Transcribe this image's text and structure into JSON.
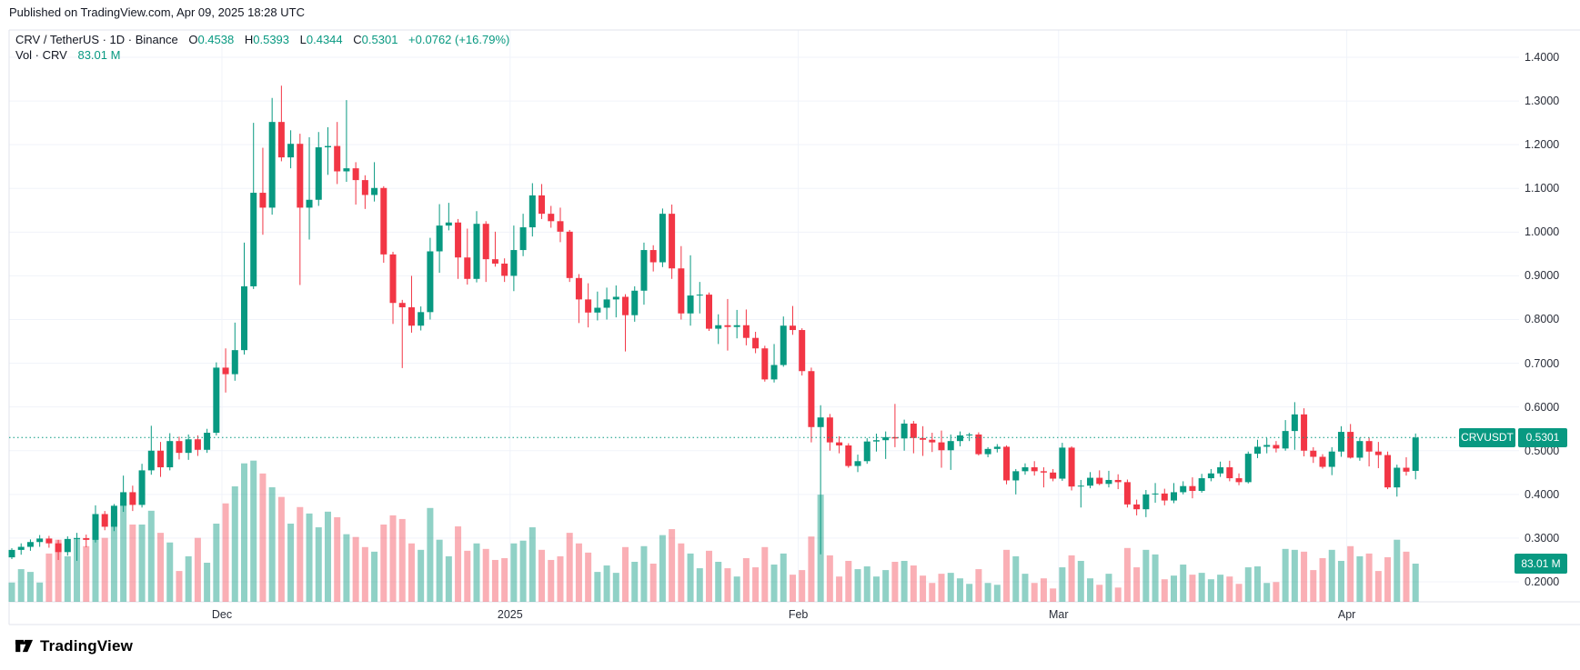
{
  "published_line": "Published on TradingView.com, Apr 09, 2025 18:28 UTC",
  "watermark": "TradingView",
  "legend": {
    "symbol": "CRV / TetherUS · 1D · Binance",
    "ohlc": [
      {
        "label": "O",
        "value": "0.4538"
      },
      {
        "label": "H",
        "value": "0.5393"
      },
      {
        "label": "L",
        "value": "0.4344"
      },
      {
        "label": "C",
        "value": "0.5301"
      }
    ],
    "change": "+0.0762 (+16.79%)",
    "volume_label": "Vol · CRV",
    "volume_value": "83.01 M"
  },
  "colors": {
    "up": "#089981",
    "down": "#F23645",
    "vol_up": "rgba(8,153,129,0.45)",
    "vol_down": "rgba(242,54,69,0.40)",
    "grid": "#f0f3fa",
    "frame": "#e0e3eb",
    "price_line": "#089981",
    "axis_text": "#2a2e39"
  },
  "chart_data": {
    "type": "candlestick_with_volume",
    "title": "CRV / TetherUS",
    "interval": "1D",
    "exchange": "Binance",
    "legend_position": "top-left",
    "grid": true,
    "y_axis": {
      "side": "right",
      "min": 0.2,
      "max": 1.4,
      "ticks": [
        {
          "v": 1.4,
          "t": "1.4000"
        },
        {
          "v": 1.3,
          "t": "1.3000"
        },
        {
          "v": 1.2,
          "t": "1.2000"
        },
        {
          "v": 1.1,
          "t": "1.1000"
        },
        {
          "v": 1.0,
          "t": "1.0000"
        },
        {
          "v": 0.9,
          "t": "0.9000"
        },
        {
          "v": 0.8,
          "t": "0.8000"
        },
        {
          "v": 0.7,
          "t": "0.7000"
        },
        {
          "v": 0.6,
          "t": "0.6000"
        },
        {
          "v": 0.5,
          "t": "0.5000"
        },
        {
          "v": 0.4,
          "t": "0.4000"
        },
        {
          "v": 0.3,
          "t": "0.3000"
        },
        {
          "v": 0.2,
          "t": "0.2000"
        }
      ]
    },
    "x_axis": {
      "labels": [
        {
          "t": "Dec",
          "day_index": 22.6
        },
        {
          "t": "2025",
          "day_index": 53.6
        },
        {
          "t": "Feb",
          "day_index": 84.6
        },
        {
          "t": "Mar",
          "day_index": 112.6
        },
        {
          "t": "Apr",
          "day_index": 143.6
        }
      ]
    },
    "price_line": {
      "tag": "CRVUSDT",
      "price_text": "0.5301",
      "price": 0.5301
    },
    "volume_badge": {
      "text": "83.01 M",
      "volume_m": 83.01
    },
    "start_date": "2024-11-09",
    "candle_fields": [
      "open",
      "high",
      "low",
      "close",
      "volume_m"
    ],
    "candles": [
      [
        0.256,
        0.277,
        0.252,
        0.273,
        42
      ],
      [
        0.273,
        0.288,
        0.262,
        0.28,
        71
      ],
      [
        0.28,
        0.297,
        0.271,
        0.291,
        65
      ],
      [
        0.291,
        0.307,
        0.28,
        0.299,
        42
      ],
      [
        0.299,
        0.305,
        0.278,
        0.288,
        105
      ],
      [
        0.288,
        0.296,
        0.25,
        0.268,
        135
      ],
      [
        0.268,
        0.304,
        0.26,
        0.298,
        99
      ],
      [
        0.298,
        0.312,
        0.248,
        0.3,
        139
      ],
      [
        0.3,
        0.308,
        0.279,
        0.296,
        121
      ],
      [
        0.296,
        0.375,
        0.29,
        0.355,
        180
      ],
      [
        0.355,
        0.362,
        0.318,
        0.326,
        139
      ],
      [
        0.326,
        0.378,
        0.316,
        0.374,
        194
      ],
      [
        0.374,
        0.443,
        0.36,
        0.405,
        224
      ],
      [
        0.405,
        0.42,
        0.362,
        0.376,
        168
      ],
      [
        0.376,
        0.47,
        0.37,
        0.455,
        168
      ],
      [
        0.455,
        0.557,
        0.445,
        0.5,
        198
      ],
      [
        0.5,
        0.52,
        0.44,
        0.462,
        150
      ],
      [
        0.462,
        0.54,
        0.455,
        0.522,
        129
      ],
      [
        0.522,
        0.532,
        0.48,
        0.495,
        67
      ],
      [
        0.495,
        0.537,
        0.479,
        0.526,
        99
      ],
      [
        0.526,
        0.535,
        0.488,
        0.502,
        139
      ],
      [
        0.502,
        0.55,
        0.495,
        0.541,
        85
      ],
      [
        0.541,
        0.702,
        0.535,
        0.69,
        170
      ],
      [
        0.69,
        0.734,
        0.633,
        0.675,
        214
      ],
      [
        0.675,
        0.793,
        0.66,
        0.73,
        251
      ],
      [
        0.73,
        0.976,
        0.72,
        0.876,
        301
      ],
      [
        0.876,
        1.25,
        0.87,
        1.09,
        307
      ],
      [
        1.09,
        1.193,
        0.994,
        1.056,
        279
      ],
      [
        1.056,
        1.307,
        1.04,
        1.252,
        249
      ],
      [
        1.252,
        1.335,
        1.162,
        1.171,
        228
      ],
      [
        1.171,
        1.233,
        1.146,
        1.202,
        170
      ],
      [
        1.202,
        1.225,
        0.879,
        1.056,
        206
      ],
      [
        1.056,
        1.217,
        0.983,
        1.074,
        192
      ],
      [
        1.074,
        1.229,
        1.06,
        1.194,
        162
      ],
      [
        1.194,
        1.24,
        1.131,
        1.197,
        196
      ],
      [
        1.197,
        1.252,
        1.11,
        1.139,
        184
      ],
      [
        1.139,
        1.302,
        1.115,
        1.146,
        147
      ],
      [
        1.146,
        1.16,
        1.063,
        1.119,
        141
      ],
      [
        1.119,
        1.13,
        1.053,
        1.085,
        119
      ],
      [
        1.085,
        1.16,
        1.07,
        1.101,
        109
      ],
      [
        1.101,
        1.105,
        0.93,
        0.949,
        168
      ],
      [
        0.949,
        0.955,
        0.79,
        0.838,
        188
      ],
      [
        0.838,
        0.845,
        0.689,
        0.828,
        180
      ],
      [
        0.828,
        0.9,
        0.77,
        0.786,
        127
      ],
      [
        0.786,
        0.83,
        0.775,
        0.817,
        113
      ],
      [
        0.817,
        0.987,
        0.8,
        0.956,
        204
      ],
      [
        0.956,
        1.064,
        0.907,
        1.015,
        135
      ],
      [
        1.015,
        1.067,
        1.004,
        1.022,
        99
      ],
      [
        1.022,
        1.03,
        0.893,
        0.942,
        164
      ],
      [
        0.942,
        1.008,
        0.88,
        0.893,
        111
      ],
      [
        0.893,
        1.048,
        0.885,
        1.019,
        127
      ],
      [
        1.019,
        1.025,
        0.886,
        0.938,
        115
      ],
      [
        0.938,
        1.001,
        0.921,
        0.928,
        91
      ],
      [
        0.928,
        0.94,
        0.886,
        0.9,
        95
      ],
      [
        0.9,
        1.015,
        0.865,
        0.959,
        127
      ],
      [
        0.959,
        1.042,
        0.945,
        1.011,
        133
      ],
      [
        1.011,
        1.112,
        0.99,
        1.084,
        162
      ],
      [
        1.084,
        1.11,
        1.03,
        1.042,
        113
      ],
      [
        1.042,
        1.06,
        1.01,
        1.025,
        91
      ],
      [
        1.025,
        1.056,
        0.977,
        1.001,
        99
      ],
      [
        1.001,
        1.005,
        0.886,
        0.895,
        150
      ],
      [
        0.895,
        0.904,
        0.792,
        0.846,
        127
      ],
      [
        0.846,
        0.883,
        0.782,
        0.816,
        107
      ],
      [
        0.816,
        0.864,
        0.798,
        0.827,
        65
      ],
      [
        0.827,
        0.873,
        0.8,
        0.846,
        79
      ],
      [
        0.846,
        0.878,
        0.805,
        0.852,
        63
      ],
      [
        0.852,
        0.858,
        0.727,
        0.81,
        119
      ],
      [
        0.81,
        0.876,
        0.795,
        0.866,
        87
      ],
      [
        0.866,
        0.976,
        0.834,
        0.959,
        121
      ],
      [
        0.959,
        0.97,
        0.91,
        0.931,
        83
      ],
      [
        0.931,
        1.054,
        0.92,
        1.042,
        145
      ],
      [
        1.042,
        1.063,
        0.893,
        0.917,
        158
      ],
      [
        0.917,
        0.968,
        0.8,
        0.814,
        127
      ],
      [
        0.814,
        0.947,
        0.786,
        0.855,
        105
      ],
      [
        0.855,
        0.886,
        0.814,
        0.857,
        73
      ],
      [
        0.857,
        0.862,
        0.774,
        0.779,
        111
      ],
      [
        0.779,
        0.812,
        0.744,
        0.787,
        87
      ],
      [
        0.787,
        0.847,
        0.729,
        0.783,
        73
      ],
      [
        0.783,
        0.822,
        0.757,
        0.787,
        55
      ],
      [
        0.787,
        0.823,
        0.741,
        0.758,
        95
      ],
      [
        0.758,
        0.772,
        0.723,
        0.734,
        75
      ],
      [
        0.734,
        0.74,
        0.658,
        0.663,
        119
      ],
      [
        0.663,
        0.744,
        0.656,
        0.696,
        81
      ],
      [
        0.696,
        0.807,
        0.692,
        0.786,
        105
      ],
      [
        0.786,
        0.831,
        0.765,
        0.776,
        59
      ],
      [
        0.776,
        0.78,
        0.672,
        0.682,
        69
      ],
      [
        0.682,
        0.69,
        0.519,
        0.554,
        142
      ],
      [
        0.554,
        0.604,
        0.263,
        0.576,
        233
      ],
      [
        0.576,
        0.584,
        0.5,
        0.519,
        101
      ],
      [
        0.519,
        0.533,
        0.494,
        0.512,
        55
      ],
      [
        0.512,
        0.517,
        0.461,
        0.465,
        89
      ],
      [
        0.465,
        0.491,
        0.451,
        0.476,
        71
      ],
      [
        0.476,
        0.529,
        0.47,
        0.521,
        77
      ],
      [
        0.521,
        0.539,
        0.498,
        0.524,
        55
      ],
      [
        0.524,
        0.544,
        0.481,
        0.531,
        69
      ],
      [
        0.531,
        0.607,
        0.508,
        0.528,
        87
      ],
      [
        0.528,
        0.571,
        0.5,
        0.562,
        89
      ],
      [
        0.562,
        0.568,
        0.494,
        0.529,
        79
      ],
      [
        0.529,
        0.556,
        0.488,
        0.525,
        57
      ],
      [
        0.525,
        0.541,
        0.497,
        0.519,
        41
      ],
      [
        0.519,
        0.546,
        0.461,
        0.501,
        61
      ],
      [
        0.501,
        0.537,
        0.456,
        0.522,
        63
      ],
      [
        0.522,
        0.544,
        0.51,
        0.535,
        51
      ],
      [
        0.535,
        0.541,
        0.522,
        0.537,
        39
      ],
      [
        0.537,
        0.542,
        0.489,
        0.492,
        71
      ],
      [
        0.492,
        0.508,
        0.485,
        0.504,
        41
      ],
      [
        0.504,
        0.515,
        0.496,
        0.509,
        37
      ],
      [
        0.509,
        0.512,
        0.423,
        0.432,
        113
      ],
      [
        0.432,
        0.458,
        0.4,
        0.453,
        99
      ],
      [
        0.453,
        0.471,
        0.445,
        0.462,
        61
      ],
      [
        0.462,
        0.476,
        0.443,
        0.453,
        41
      ],
      [
        0.453,
        0.462,
        0.416,
        0.45,
        51
      ],
      [
        0.45,
        0.458,
        0.43,
        0.436,
        29
      ],
      [
        0.436,
        0.518,
        0.431,
        0.507,
        75
      ],
      [
        0.507,
        0.51,
        0.409,
        0.418,
        101
      ],
      [
        0.418,
        0.433,
        0.37,
        0.42,
        89
      ],
      [
        0.42,
        0.451,
        0.414,
        0.438,
        51
      ],
      [
        0.438,
        0.455,
        0.421,
        0.424,
        37
      ],
      [
        0.424,
        0.454,
        0.416,
        0.433,
        61
      ],
      [
        0.433,
        0.446,
        0.412,
        0.428,
        31
      ],
      [
        0.428,
        0.434,
        0.37,
        0.377,
        117
      ],
      [
        0.377,
        0.388,
        0.352,
        0.366,
        75
      ],
      [
        0.366,
        0.41,
        0.348,
        0.4,
        113
      ],
      [
        0.4,
        0.426,
        0.381,
        0.402,
        103
      ],
      [
        0.402,
        0.413,
        0.375,
        0.386,
        49
      ],
      [
        0.386,
        0.426,
        0.38,
        0.405,
        57
      ],
      [
        0.405,
        0.43,
        0.4,
        0.419,
        81
      ],
      [
        0.419,
        0.439,
        0.391,
        0.408,
        59
      ],
      [
        0.408,
        0.447,
        0.404,
        0.437,
        63
      ],
      [
        0.437,
        0.458,
        0.43,
        0.448,
        49
      ],
      [
        0.448,
        0.475,
        0.44,
        0.462,
        59
      ],
      [
        0.462,
        0.477,
        0.43,
        0.437,
        55
      ],
      [
        0.437,
        0.448,
        0.421,
        0.428,
        39
      ],
      [
        0.428,
        0.498,
        0.425,
        0.493,
        75
      ],
      [
        0.493,
        0.525,
        0.483,
        0.509,
        77
      ],
      [
        0.509,
        0.529,
        0.494,
        0.513,
        41
      ],
      [
        0.513,
        0.522,
        0.496,
        0.505,
        43
      ],
      [
        0.505,
        0.57,
        0.5,
        0.545,
        115
      ],
      [
        0.545,
        0.611,
        0.502,
        0.583,
        113
      ],
      [
        0.583,
        0.597,
        0.487,
        0.5,
        109
      ],
      [
        0.5,
        0.508,
        0.472,
        0.486,
        69
      ],
      [
        0.486,
        0.492,
        0.459,
        0.463,
        95
      ],
      [
        0.463,
        0.508,
        0.444,
        0.498,
        113
      ],
      [
        0.498,
        0.556,
        0.486,
        0.543,
        89
      ],
      [
        0.543,
        0.561,
        0.482,
        0.484,
        121
      ],
      [
        0.484,
        0.53,
        0.477,
        0.522,
        99
      ],
      [
        0.522,
        0.53,
        0.464,
        0.498,
        105
      ],
      [
        0.498,
        0.52,
        0.46,
        0.49,
        67
      ],
      [
        0.49,
        0.498,
        0.412,
        0.416,
        97
      ],
      [
        0.416,
        0.468,
        0.395,
        0.461,
        135
      ],
      [
        0.461,
        0.485,
        0.443,
        0.452,
        109
      ],
      [
        0.4538,
        0.5393,
        0.4344,
        0.5301,
        83.01
      ]
    ]
  }
}
